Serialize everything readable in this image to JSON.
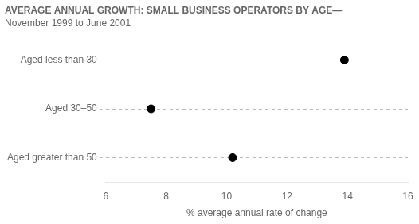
{
  "chart_data": {
    "type": "dot",
    "orientation": "horizontal",
    "title": "AVERAGE ANNUAL GROWTH: SMALL BUSINESS OPERATORS BY AGE—",
    "subtitle": "November 1999 to June 2001",
    "categories": [
      "Aged less than 30",
      "Aged 30–50",
      "Aged greater than 50"
    ],
    "values": [
      13.9,
      7.5,
      10.2
    ],
    "color": "#000000",
    "xlabel": "% average annual rate of change",
    "xlim": [
      6,
      16
    ],
    "xticks": [
      6,
      8,
      10,
      12,
      14,
      16
    ],
    "grid": "y",
    "legend": false
  }
}
